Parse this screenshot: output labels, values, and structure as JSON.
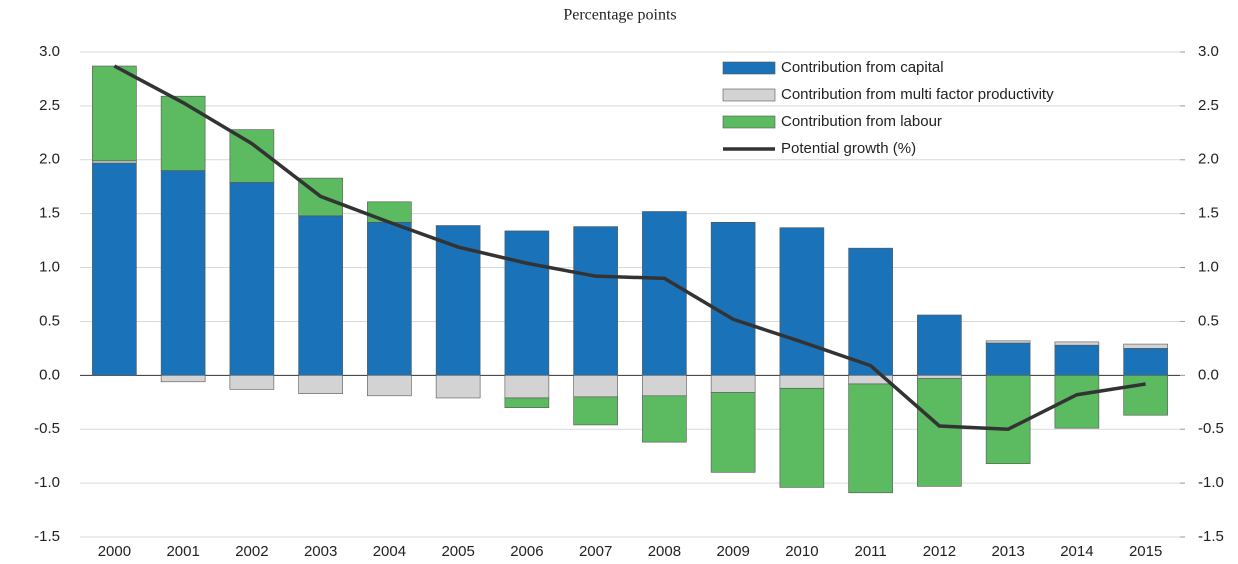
{
  "chart_data": {
    "type": "bar",
    "stacked": true,
    "title": "Percentage points",
    "categories": [
      "2000",
      "2001",
      "2002",
      "2003",
      "2004",
      "2005",
      "2006",
      "2007",
      "2008",
      "2009",
      "2010",
      "2011",
      "2012",
      "2013",
      "2014",
      "2015"
    ],
    "series": [
      {
        "name": "Contribution from capital",
        "type": "bar",
        "color": "#1a73b9",
        "values": [
          1.97,
          1.9,
          1.79,
          1.48,
          1.42,
          1.39,
          1.34,
          1.38,
          1.52,
          1.42,
          1.37,
          1.18,
          0.56,
          0.3,
          0.28,
          0.25
        ]
      },
      {
        "name": "Contribution from multi factor productivity",
        "type": "bar",
        "color": "#d3d3d3",
        "values": [
          0.02,
          -0.06,
          -0.13,
          -0.17,
          -0.19,
          -0.21,
          -0.21,
          -0.2,
          -0.19,
          -0.16,
          -0.12,
          -0.08,
          -0.03,
          0.02,
          0.03,
          0.04
        ]
      },
      {
        "name": "Contribution from labour",
        "type": "bar",
        "color": "#5cba61",
        "values": [
          0.88,
          0.69,
          0.49,
          0.35,
          0.19,
          0,
          -0.09,
          -0.26,
          -0.43,
          -0.74,
          -0.92,
          -1.01,
          -1.0,
          -0.82,
          -0.49,
          -0.37
        ]
      },
      {
        "name": "Potential growth (%)",
        "type": "line",
        "color": "#333333",
        "values": [
          2.87,
          2.53,
          2.15,
          1.66,
          1.42,
          1.19,
          1.04,
          0.92,
          0.9,
          0.52,
          0.31,
          0.09,
          -0.47,
          -0.5,
          -0.18,
          -0.08
        ]
      }
    ],
    "ylim": [
      -1.5,
      3.0
    ],
    "yticks": [
      -1.5,
      {
        "value": -1,
        "label": "-1.0"
      },
      -0.5,
      {
        "value": 0,
        "label": "0.0"
      },
      0.5,
      {
        "value": 1,
        "label": "1.0"
      },
      1.5,
      {
        "value": 2,
        "label": "2.0"
      },
      2.5,
      {
        "value": 3,
        "label": "3.0"
      }
    ],
    "y2lim": [
      -1.5,
      3.0
    ],
    "y2ticks": [
      -1.5,
      {
        "value": -1,
        "label": "-1.0"
      },
      -0.5,
      {
        "value": 0,
        "label": "0.0"
      },
      0.5,
      {
        "value": 1,
        "label": "1.0"
      },
      1.5,
      {
        "value": 2,
        "label": "2.0"
      },
      2.5,
      {
        "value": 3,
        "label": "3.0"
      }
    ],
    "grid": true,
    "legend": "top-right"
  }
}
